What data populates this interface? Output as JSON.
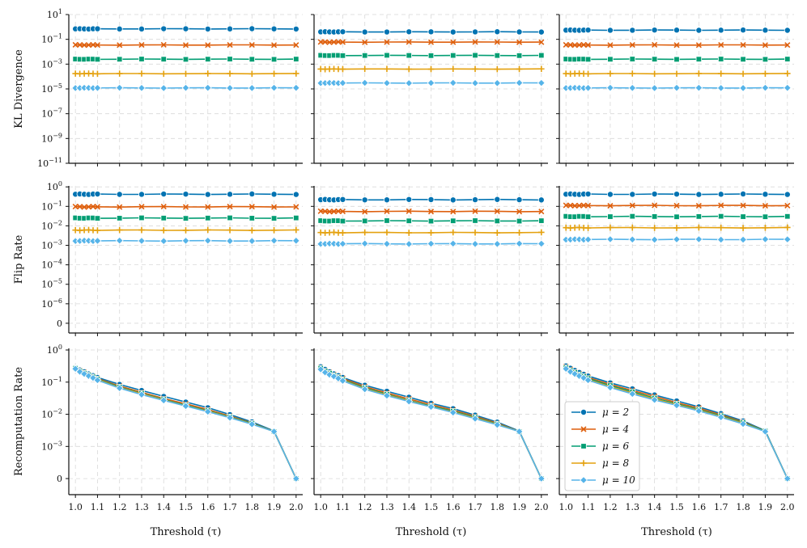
{
  "colors": {
    "mu2": "#0173b2",
    "mu4": "#de5f0d",
    "mu6": "#029e73",
    "mu8": "#e4a10f",
    "mu10": "#56b4e9",
    "grid": "#d9d9d9",
    "axis": "#111111"
  },
  "chart_data": {
    "type": "line",
    "layout": "3x3 grid of subplots",
    "x": [
      1.0,
      1.02,
      1.04,
      1.06,
      1.08,
      1.1,
      1.2,
      1.3,
      1.4,
      1.5,
      1.6,
      1.7,
      1.8,
      1.9,
      2.0
    ],
    "xtick_labels": [
      "1.0",
      "1.1",
      "1.2",
      "1.3",
      "1.4",
      "1.5",
      "1.6",
      "1.7",
      "1.8",
      "1.9",
      "2.0"
    ],
    "xlabel": "Threshold (τ)",
    "legend": {
      "placement": "lower-left of bottom-right panel",
      "entries": [
        "μ = 2",
        "μ = 4",
        "μ = 6",
        "μ = 8",
        "μ = 10"
      ]
    },
    "rows": [
      {
        "ylabel": "KL Divergence",
        "yscale": "log",
        "ylim_exp": [
          -11,
          1
        ],
        "ytick_labels": [
          "10",
          "10",
          "10",
          "10",
          "10",
          "10",
          "10"
        ],
        "ytick_exponents": [
          "1",
          "−1",
          "−3",
          "−5",
          "−7",
          "−9",
          "−11"
        ],
        "panels": [
          {
            "series": [
              {
                "name": "μ = 2",
                "value": 0.7
              },
              {
                "name": "μ = 4",
                "value": 0.035
              },
              {
                "name": "μ = 6",
                "value": 0.0025
              },
              {
                "name": "μ = 8",
                "value": 0.00017
              },
              {
                "name": "μ = 10",
                "value": 1.2e-05
              }
            ]
          },
          {
            "series": [
              {
                "name": "μ = 2",
                "value": 0.4
              },
              {
                "name": "μ = 4",
                "value": 0.06
              },
              {
                "name": "μ = 6",
                "value": 0.005
              },
              {
                "name": "μ = 8",
                "value": 0.0004
              },
              {
                "name": "μ = 10",
                "value": 3e-05
              }
            ]
          },
          {
            "series": [
              {
                "name": "μ = 2",
                "value": 0.55
              },
              {
                "name": "μ = 4",
                "value": 0.035
              },
              {
                "name": "μ = 6",
                "value": 0.0025
              },
              {
                "name": "μ = 8",
                "value": 0.00017
              },
              {
                "name": "μ = 10",
                "value": 1.2e-05
              }
            ]
          }
        ]
      },
      {
        "ylabel": "Flip Rate",
        "yscale": "symlog",
        "ylim_exp": [
          -7,
          0
        ],
        "ytick_labels": [
          "10",
          "10",
          "10",
          "10",
          "10",
          "10",
          "10",
          "0"
        ],
        "ytick_exponents": [
          "0",
          "−1",
          "−2",
          "−3",
          "−4",
          "−5",
          "−6",
          ""
        ],
        "panels": [
          {
            "series": [
              {
                "name": "μ = 2",
                "value": 0.42
              },
              {
                "name": "μ = 4",
                "value": 0.095
              },
              {
                "name": "μ = 6",
                "value": 0.025
              },
              {
                "name": "μ = 8",
                "value": 0.006
              },
              {
                "name": "μ = 10",
                "value": 0.0017
              }
            ]
          },
          {
            "series": [
              {
                "name": "μ = 2",
                "value": 0.22
              },
              {
                "name": "μ = 4",
                "value": 0.055
              },
              {
                "name": "μ = 6",
                "value": 0.018
              },
              {
                "name": "μ = 8",
                "value": 0.0045
              },
              {
                "name": "μ = 10",
                "value": 0.0012
              }
            ]
          },
          {
            "series": [
              {
                "name": "μ = 2",
                "value": 0.42
              },
              {
                "name": "μ = 4",
                "value": 0.11
              },
              {
                "name": "μ = 6",
                "value": 0.03
              },
              {
                "name": "μ = 8",
                "value": 0.008
              },
              {
                "name": "μ = 10",
                "value": 0.002
              }
            ]
          }
        ]
      },
      {
        "ylabel": "Recomputation Rate",
        "yscale": "symlog",
        "ylim_exp": [
          -4,
          0
        ],
        "ytick_labels": [
          "10",
          "10",
          "10",
          "10",
          "0"
        ],
        "ytick_exponents": [
          "0",
          "−1",
          "−2",
          "−3",
          ""
        ],
        "panels": [
          {
            "series_values": [
              [
                0.28,
                0.24,
                0.21,
                0.18,
                0.16,
                0.14,
                0.085,
                0.055,
                0.036,
                0.024,
                0.016,
                0.0098,
                0.0058,
                0.003,
                0
              ],
              [
                0.27,
                0.23,
                0.2,
                0.17,
                0.15,
                0.13,
                0.075,
                0.048,
                0.031,
                0.021,
                0.014,
                0.0088,
                0.0054,
                0.0029,
                0
              ],
              [
                0.27,
                0.22,
                0.19,
                0.165,
                0.145,
                0.125,
                0.07,
                0.045,
                0.029,
                0.019,
                0.013,
                0.0083,
                0.0052,
                0.0029,
                0
              ],
              [
                0.26,
                0.22,
                0.19,
                0.16,
                0.14,
                0.12,
                0.067,
                0.043,
                0.028,
                0.018,
                0.0125,
                0.008,
                0.005,
                0.0029,
                0
              ],
              [
                0.26,
                0.21,
                0.18,
                0.155,
                0.135,
                0.115,
                0.065,
                0.041,
                0.027,
                0.018,
                0.012,
                0.0078,
                0.0049,
                0.0029,
                0
              ]
            ]
          },
          {
            "series_values": [
              [
                0.3,
                0.25,
                0.21,
                0.18,
                0.16,
                0.14,
                0.08,
                0.052,
                0.034,
                0.022,
                0.015,
                0.0094,
                0.0057,
                0.003,
                0
              ],
              [
                0.28,
                0.23,
                0.2,
                0.17,
                0.15,
                0.13,
                0.072,
                0.046,
                0.03,
                0.02,
                0.0135,
                0.0086,
                0.0053,
                0.0029,
                0
              ],
              [
                0.27,
                0.22,
                0.19,
                0.16,
                0.14,
                0.12,
                0.066,
                0.042,
                0.027,
                0.018,
                0.0125,
                0.008,
                0.005,
                0.0029,
                0
              ],
              [
                0.26,
                0.21,
                0.18,
                0.155,
                0.135,
                0.115,
                0.062,
                0.04,
                0.026,
                0.017,
                0.0118,
                0.0076,
                0.0048,
                0.0029,
                0
              ],
              [
                0.25,
                0.2,
                0.17,
                0.15,
                0.13,
                0.11,
                0.06,
                0.038,
                0.025,
                0.017,
                0.0113,
                0.0073,
                0.0047,
                0.0029,
                0
              ]
            ]
          },
          {
            "series_values": [
              [
                0.32,
                0.27,
                0.23,
                0.2,
                0.175,
                0.155,
                0.095,
                0.062,
                0.04,
                0.026,
                0.017,
                0.0105,
                0.0062,
                0.0031,
                0
              ],
              [
                0.3,
                0.25,
                0.21,
                0.18,
                0.16,
                0.14,
                0.085,
                0.055,
                0.036,
                0.023,
                0.0155,
                0.0096,
                0.0058,
                0.003,
                0
              ],
              [
                0.28,
                0.23,
                0.2,
                0.17,
                0.15,
                0.13,
                0.078,
                0.05,
                0.032,
                0.021,
                0.014,
                0.009,
                0.0055,
                0.003,
                0
              ],
              [
                0.27,
                0.22,
                0.19,
                0.16,
                0.14,
                0.12,
                0.072,
                0.046,
                0.03,
                0.02,
                0.0133,
                0.0085,
                0.0052,
                0.0029,
                0
              ],
              [
                0.26,
                0.21,
                0.18,
                0.155,
                0.135,
                0.115,
                0.068,
                0.043,
                0.028,
                0.019,
                0.0127,
                0.0081,
                0.005,
                0.0029,
                0
              ]
            ]
          }
        ]
      }
    ]
  }
}
